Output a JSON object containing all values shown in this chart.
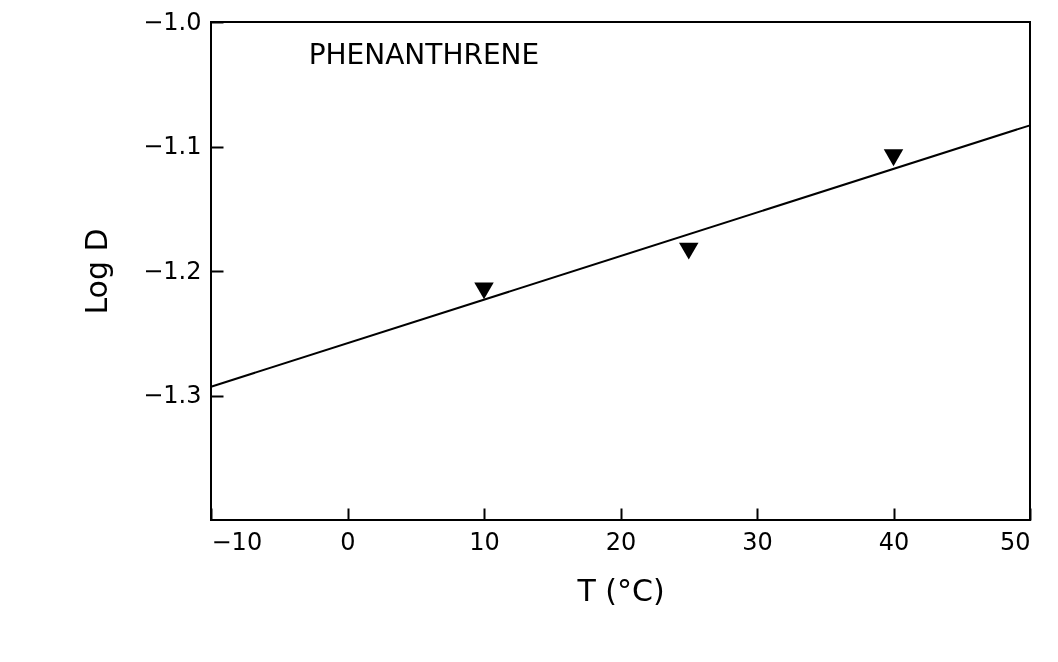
{
  "chart_data": {
    "type": "scatter",
    "xlabel": "T (°C)",
    "ylabel": "Log D",
    "annotations": [
      "PHENANTHRENE"
    ],
    "x": [
      10,
      25,
      40
    ],
    "series": [
      {
        "color": "#000000",
        "marker": "triangle",
        "values": [
          -1.216,
          -1.184,
          -1.109
        ]
      },
      {
        "type": "line",
        "color": "#000000",
        "marker": "none",
        "x": [
          -10,
          50
        ],
        "values": [
          -1.293,
          -1.083
        ]
      }
    ],
    "grid": false,
    "xlim": [
      -10,
      50
    ],
    "xticks": [
      -10,
      0,
      10,
      20,
      30,
      40,
      50
    ],
    "ylim": [
      -1.4,
      -1.0
    ],
    "yticks": [
      {
        "value": -1.0,
        "label": "−1.0"
      },
      -1.1,
      -1.2,
      -1.3
    ]
  }
}
